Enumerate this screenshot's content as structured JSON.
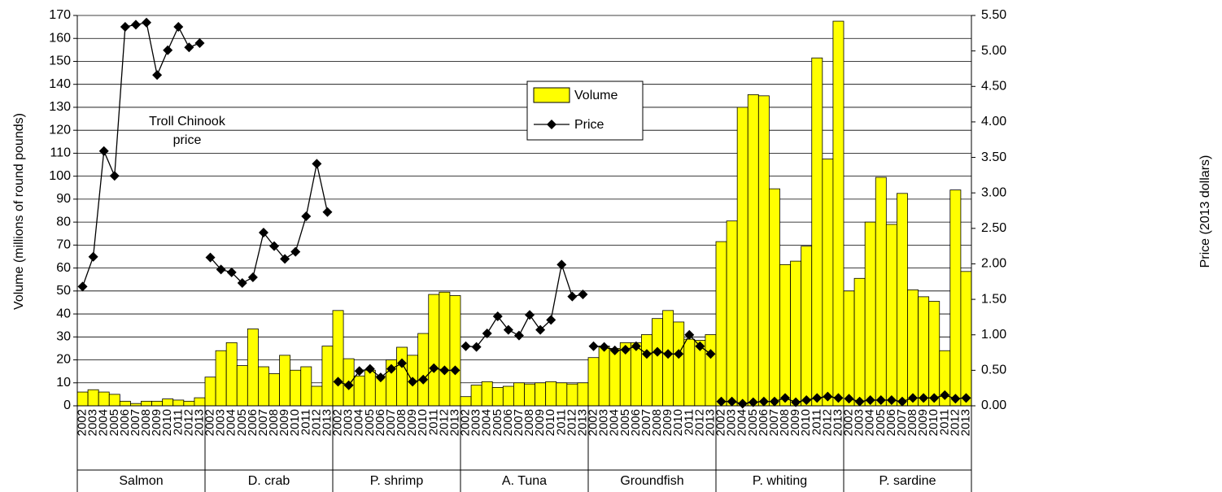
{
  "chart_data": {
    "type": "bar_line",
    "ylabel": "Volume (millions of round pounds)",
    "y2label": "Price (2013  dollars)",
    "ylim": [
      0,
      170
    ],
    "yticks": [
      0,
      10,
      20,
      30,
      40,
      50,
      60,
      70,
      80,
      90,
      100,
      110,
      120,
      130,
      140,
      150,
      160,
      170
    ],
    "y2lim": [
      0,
      5.5
    ],
    "y2ticks": [
      {
        "value": 0,
        "label": "0.00"
      },
      {
        "value": 0.5,
        "label": "0.50"
      },
      {
        "value": 1,
        "label": "1.00"
      },
      {
        "value": 1.5,
        "label": "1.50"
      },
      {
        "value": 2,
        "label": "2.00"
      },
      {
        "value": 2.5,
        "label": "2.50"
      },
      {
        "value": 3,
        "label": "3.00"
      },
      {
        "value": 3.5,
        "label": "3.50"
      },
      {
        "value": 4,
        "label": "4.00"
      },
      {
        "value": 4.5,
        "label": "4.50"
      },
      {
        "value": 5,
        "label": "5.00"
      },
      {
        "value": 5.5,
        "label": "5.50"
      }
    ],
    "grid": true,
    "annotation": [
      "Troll  Chinook",
      "price"
    ],
    "groups": [
      {
        "name": "Salmon",
        "categories": [
          "2002",
          "2003",
          "2004",
          "2005",
          "2006",
          "2007",
          "2008",
          "2009",
          "2010",
          "2011",
          "2012",
          "2013"
        ]
      },
      {
        "name": "D. crab",
        "categories": [
          "2002",
          "2003",
          "2004",
          "2005",
          "2006",
          "2007",
          "2008",
          "2009",
          "2010",
          "2011",
          "2012",
          "2013"
        ]
      },
      {
        "name": "P. shrimp",
        "categories": [
          "2002",
          "2003",
          "2004",
          "2005",
          "2006",
          "2007",
          "2008",
          "2009",
          "2010",
          "2011",
          "2012",
          "2013"
        ]
      },
      {
        "name": "A. Tuna",
        "categories": [
          "2002",
          "2003",
          "2004",
          "2005",
          "2006",
          "2007",
          "2008",
          "2009",
          "2010",
          "2011",
          "2012",
          "2013"
        ]
      },
      {
        "name": "Groundfish",
        "categories": [
          "2002",
          "2003",
          "2004",
          "2005",
          "2006",
          "2007",
          "2008",
          "2009",
          "2010",
          "2011",
          "2012",
          "2013"
        ]
      },
      {
        "name": "P. whiting",
        "categories": [
          "2002",
          "2003",
          "2004",
          "2005",
          "2006",
          "2007",
          "2008",
          "2009",
          "2010",
          "2011",
          "2012",
          "2013"
        ]
      },
      {
        "name": "P. sardine",
        "categories": [
          "2002",
          "2003",
          "2004",
          "2005",
          "2006",
          "2007",
          "2008",
          "2009",
          "2010",
          "2011",
          "2012",
          "2013"
        ]
      }
    ],
    "series": [
      {
        "name": "Volume",
        "color": "#ffff00",
        "values": [
          [
            6,
            7,
            6,
            5,
            2,
            1,
            2,
            2,
            3,
            2.5,
            2,
            3.5
          ],
          [
            12.5,
            24,
            27.5,
            17.5,
            33.5,
            17,
            14,
            22,
            15.5,
            17,
            8.5,
            26
          ],
          [
            41.5,
            20.5,
            13,
            15.5,
            13,
            20,
            25.5,
            22,
            31.5,
            48.5,
            49.5,
            48
          ],
          [
            4,
            9,
            10.5,
            8,
            8.5,
            10,
            9.5,
            10,
            10.5,
            10,
            9.5,
            10
          ],
          [
            21,
            26,
            25,
            27.5,
            27.5,
            31,
            38,
            41.5,
            36.5,
            29,
            28.5,
            31
          ],
          [
            71.5,
            80.5,
            130,
            135.5,
            135,
            94.5,
            61.5,
            63,
            69.5,
            151.5,
            107.5,
            167.5
          ],
          [
            50,
            55.5,
            80,
            99.5,
            79,
            92.5,
            50.5,
            47.5,
            45.5,
            24,
            94,
            58.5
          ]
        ]
      },
      {
        "name": "Price",
        "color": "#000000",
        "axis": "y2",
        "values": [
          [
            1.68,
            2.1,
            3.59,
            3.24,
            5.34,
            5.37,
            5.4,
            4.66,
            5.01,
            5.34,
            5.05,
            5.11
          ],
          [
            2.09,
            1.92,
            1.88,
            1.73,
            1.81,
            2.44,
            2.25,
            2.07,
            2.17,
            2.67,
            3.41,
            2.73
          ],
          [
            0.34,
            0.29,
            0.49,
            0.52,
            0.4,
            0.52,
            0.6,
            0.34,
            0.37,
            0.53,
            0.5,
            0.5
          ],
          [
            0.84,
            0.83,
            1.02,
            1.26,
            1.07,
            0.99,
            1.28,
            1.07,
            1.21,
            1.99,
            1.54,
            1.57
          ],
          [
            0.84,
            0.83,
            0.78,
            0.79,
            0.84,
            0.73,
            0.76,
            0.73,
            0.73,
            1.0,
            0.84,
            0.73
          ],
          [
            0.06,
            0.06,
            0.03,
            0.05,
            0.06,
            0.06,
            0.11,
            0.05,
            0.08,
            0.11,
            0.13,
            0.11
          ],
          [
            0.1,
            0.06,
            0.08,
            0.08,
            0.08,
            0.06,
            0.11,
            0.11,
            0.11,
            0.15,
            0.1,
            0.11
          ]
        ]
      }
    ]
  }
}
